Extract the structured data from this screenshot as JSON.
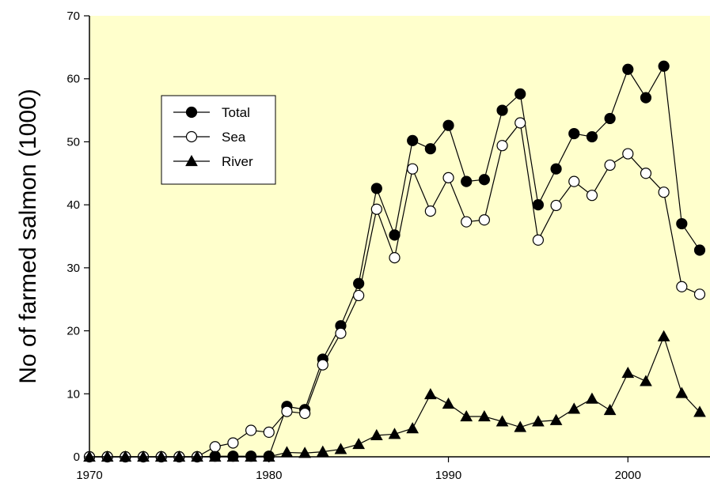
{
  "chart_data": {
    "type": "line",
    "title": "",
    "xlabel": "",
    "ylabel": "No of farmed salmon (1000)",
    "xlim": [
      1970,
      2004.5
    ],
    "ylim": [
      0,
      70
    ],
    "xticks": [
      1970,
      1980,
      1990,
      2000
    ],
    "yticks": [
      0,
      10,
      20,
      30,
      40,
      50,
      60,
      70
    ],
    "grid": false,
    "legend_position": "upper-left",
    "background_color": "#ffffcc",
    "x": [
      1970,
      1971,
      1972,
      1973,
      1974,
      1975,
      1976,
      1977,
      1978,
      1979,
      1980,
      1981,
      1982,
      1983,
      1984,
      1985,
      1986,
      1987,
      1988,
      1989,
      1990,
      1991,
      1992,
      1993,
      1994,
      1995,
      1996,
      1997,
      1998,
      1999,
      2000,
      2001,
      2002,
      2003,
      2004
    ],
    "series": [
      {
        "name": "Total",
        "marker": "filled-circle",
        "values": [
          0,
          0,
          0,
          0,
          0,
          0,
          0,
          0.1,
          0.1,
          0.1,
          0.1,
          8.0,
          7.5,
          15.5,
          20.8,
          27.5,
          42.6,
          35.2,
          50.2,
          48.9,
          52.6,
          43.7,
          44.0,
          55.0,
          57.6,
          40.0,
          45.7,
          51.3,
          50.8,
          53.7,
          61.5,
          57.0,
          62.0,
          37.0,
          32.8
        ]
      },
      {
        "name": "Sea",
        "marker": "open-circle",
        "values": [
          0,
          0,
          0,
          0,
          0,
          0,
          0,
          1.6,
          2.2,
          4.2,
          3.9,
          7.2,
          6.9,
          14.6,
          19.6,
          25.6,
          39.3,
          31.6,
          45.7,
          39.0,
          44.3,
          37.3,
          37.6,
          49.4,
          53.0,
          34.4,
          39.9,
          43.7,
          41.5,
          46.3,
          48.1,
          45.0,
          42.0,
          27.0,
          25.8
        ]
      },
      {
        "name": "River",
        "marker": "filled-triangle",
        "values": [
          0,
          0,
          0,
          0,
          0,
          0,
          0,
          0,
          0,
          0,
          0,
          0.7,
          0.6,
          0.8,
          1.2,
          2.0,
          3.4,
          3.6,
          4.5,
          9.9,
          8.4,
          6.4,
          6.4,
          5.6,
          4.7,
          5.6,
          5.8,
          7.6,
          9.2,
          7.4,
          13.3,
          12.0,
          19.1,
          10.1,
          7.1
        ]
      }
    ]
  }
}
